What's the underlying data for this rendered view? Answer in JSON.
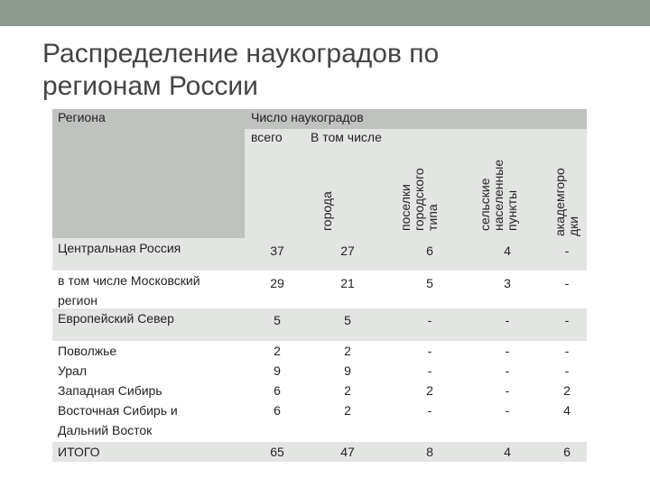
{
  "slide": {
    "title_line1": "Распределение наукоградов по",
    "title_line2": "регионам России"
  },
  "table": {
    "header": {
      "region": "Региона",
      "count": "Число наукоградов",
      "total": "всего",
      "including": "В том числе",
      "sub": [
        "города",
        "поселки\nгородского\nтипа",
        "сельские\nнаселенные\nпункты",
        "академгоро\nдки"
      ]
    },
    "rows": [
      {
        "label": [
          "Центральная Россия"
        ],
        "values": [
          [
            "37"
          ],
          [
            "27"
          ],
          [
            "6"
          ],
          [
            "4"
          ],
          [
            "-"
          ]
        ]
      },
      {
        "label": [
          "в том числе Московский",
          "регион"
        ],
        "values": [
          [
            "29"
          ],
          [
            "21"
          ],
          [
            "5"
          ],
          [
            "3"
          ],
          [
            "-"
          ]
        ]
      },
      {
        "label": [
          "Европейский Север"
        ],
        "values": [
          [
            "5"
          ],
          [
            "5"
          ],
          [
            "-"
          ],
          [
            "-"
          ],
          [
            "-"
          ]
        ]
      },
      {
        "label": [
          "Поволжье",
          "Урал",
          "Западная Сибирь",
          "Восточная Сибирь и",
          "Дальний Восток"
        ],
        "values": [
          [
            "2",
            "9",
            "6",
            "6"
          ],
          [
            "2",
            "9",
            "2",
            "2"
          ],
          [
            "-",
            "-",
            "2",
            "-"
          ],
          [
            "-",
            "-",
            "-",
            "-"
          ],
          [
            "-",
            "-",
            "2",
            "4"
          ]
        ]
      },
      {
        "label": [
          "ИТОГО"
        ],
        "values": [
          [
            "65"
          ],
          [
            "47"
          ],
          [
            "8"
          ],
          [
            "4"
          ],
          [
            "6"
          ]
        ]
      }
    ]
  },
  "colors": {
    "topbar": "#8e9a90",
    "header_dark": "#bfc2bf",
    "body_light": "#e3e5e3"
  }
}
